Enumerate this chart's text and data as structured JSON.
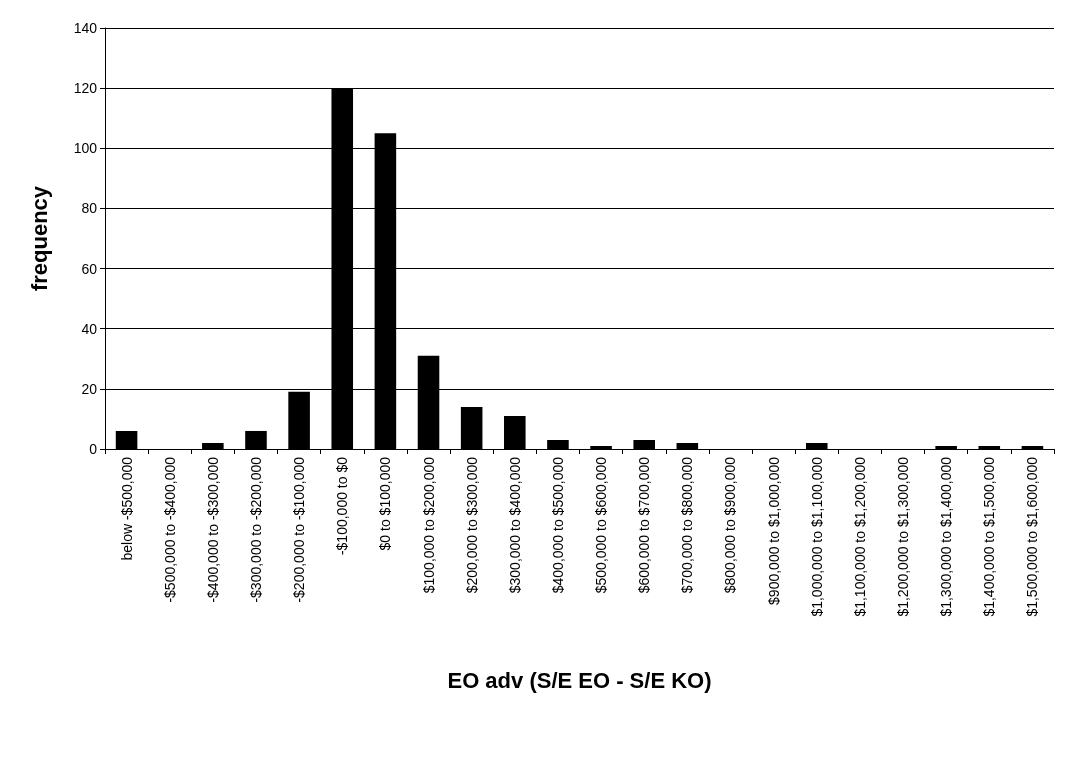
{
  "chart_data": {
    "type": "bar",
    "xlabel": "EO adv (S/E EO - S/E KO)",
    "ylabel": "frequency",
    "categories": [
      "below -$500,000",
      "-$500,000 to -$400,000",
      "-$400,000 to -$300,000",
      "-$300,000 to -$200,000",
      "-$200,000 to -$100,000",
      "-$100,000 to $0",
      "$0 to $100,000",
      "$100,000 to $200,000",
      "$200,000 to $300,000",
      "$300,000 to $400,000",
      "$400,000 to $500,000",
      "$500,000 to $600,000",
      "$600,000 to $700,000",
      "$700,000 to $800,000",
      "$800,000 to $900,000",
      "$900,000 to $1,000,000",
      "$1,000,000 to $1,100,000",
      "$1,100,000 to $1,200,000",
      "$1,200,000 to $1,300,000",
      "$1,300,000 to $1,400,000",
      "$1,400,000 to $1,500,000",
      "$1,500,000 to $1,600,000"
    ],
    "values": [
      6,
      0,
      2,
      6,
      19,
      120,
      105,
      31,
      14,
      11,
      3,
      1,
      3,
      2,
      0,
      0,
      2,
      0,
      0,
      1,
      1,
      1
    ],
    "color": "#000000",
    "ylim": [
      0,
      140
    ],
    "yticks": [
      0,
      20,
      40,
      60,
      80,
      100,
      120,
      140
    ],
    "grid": "y"
  }
}
